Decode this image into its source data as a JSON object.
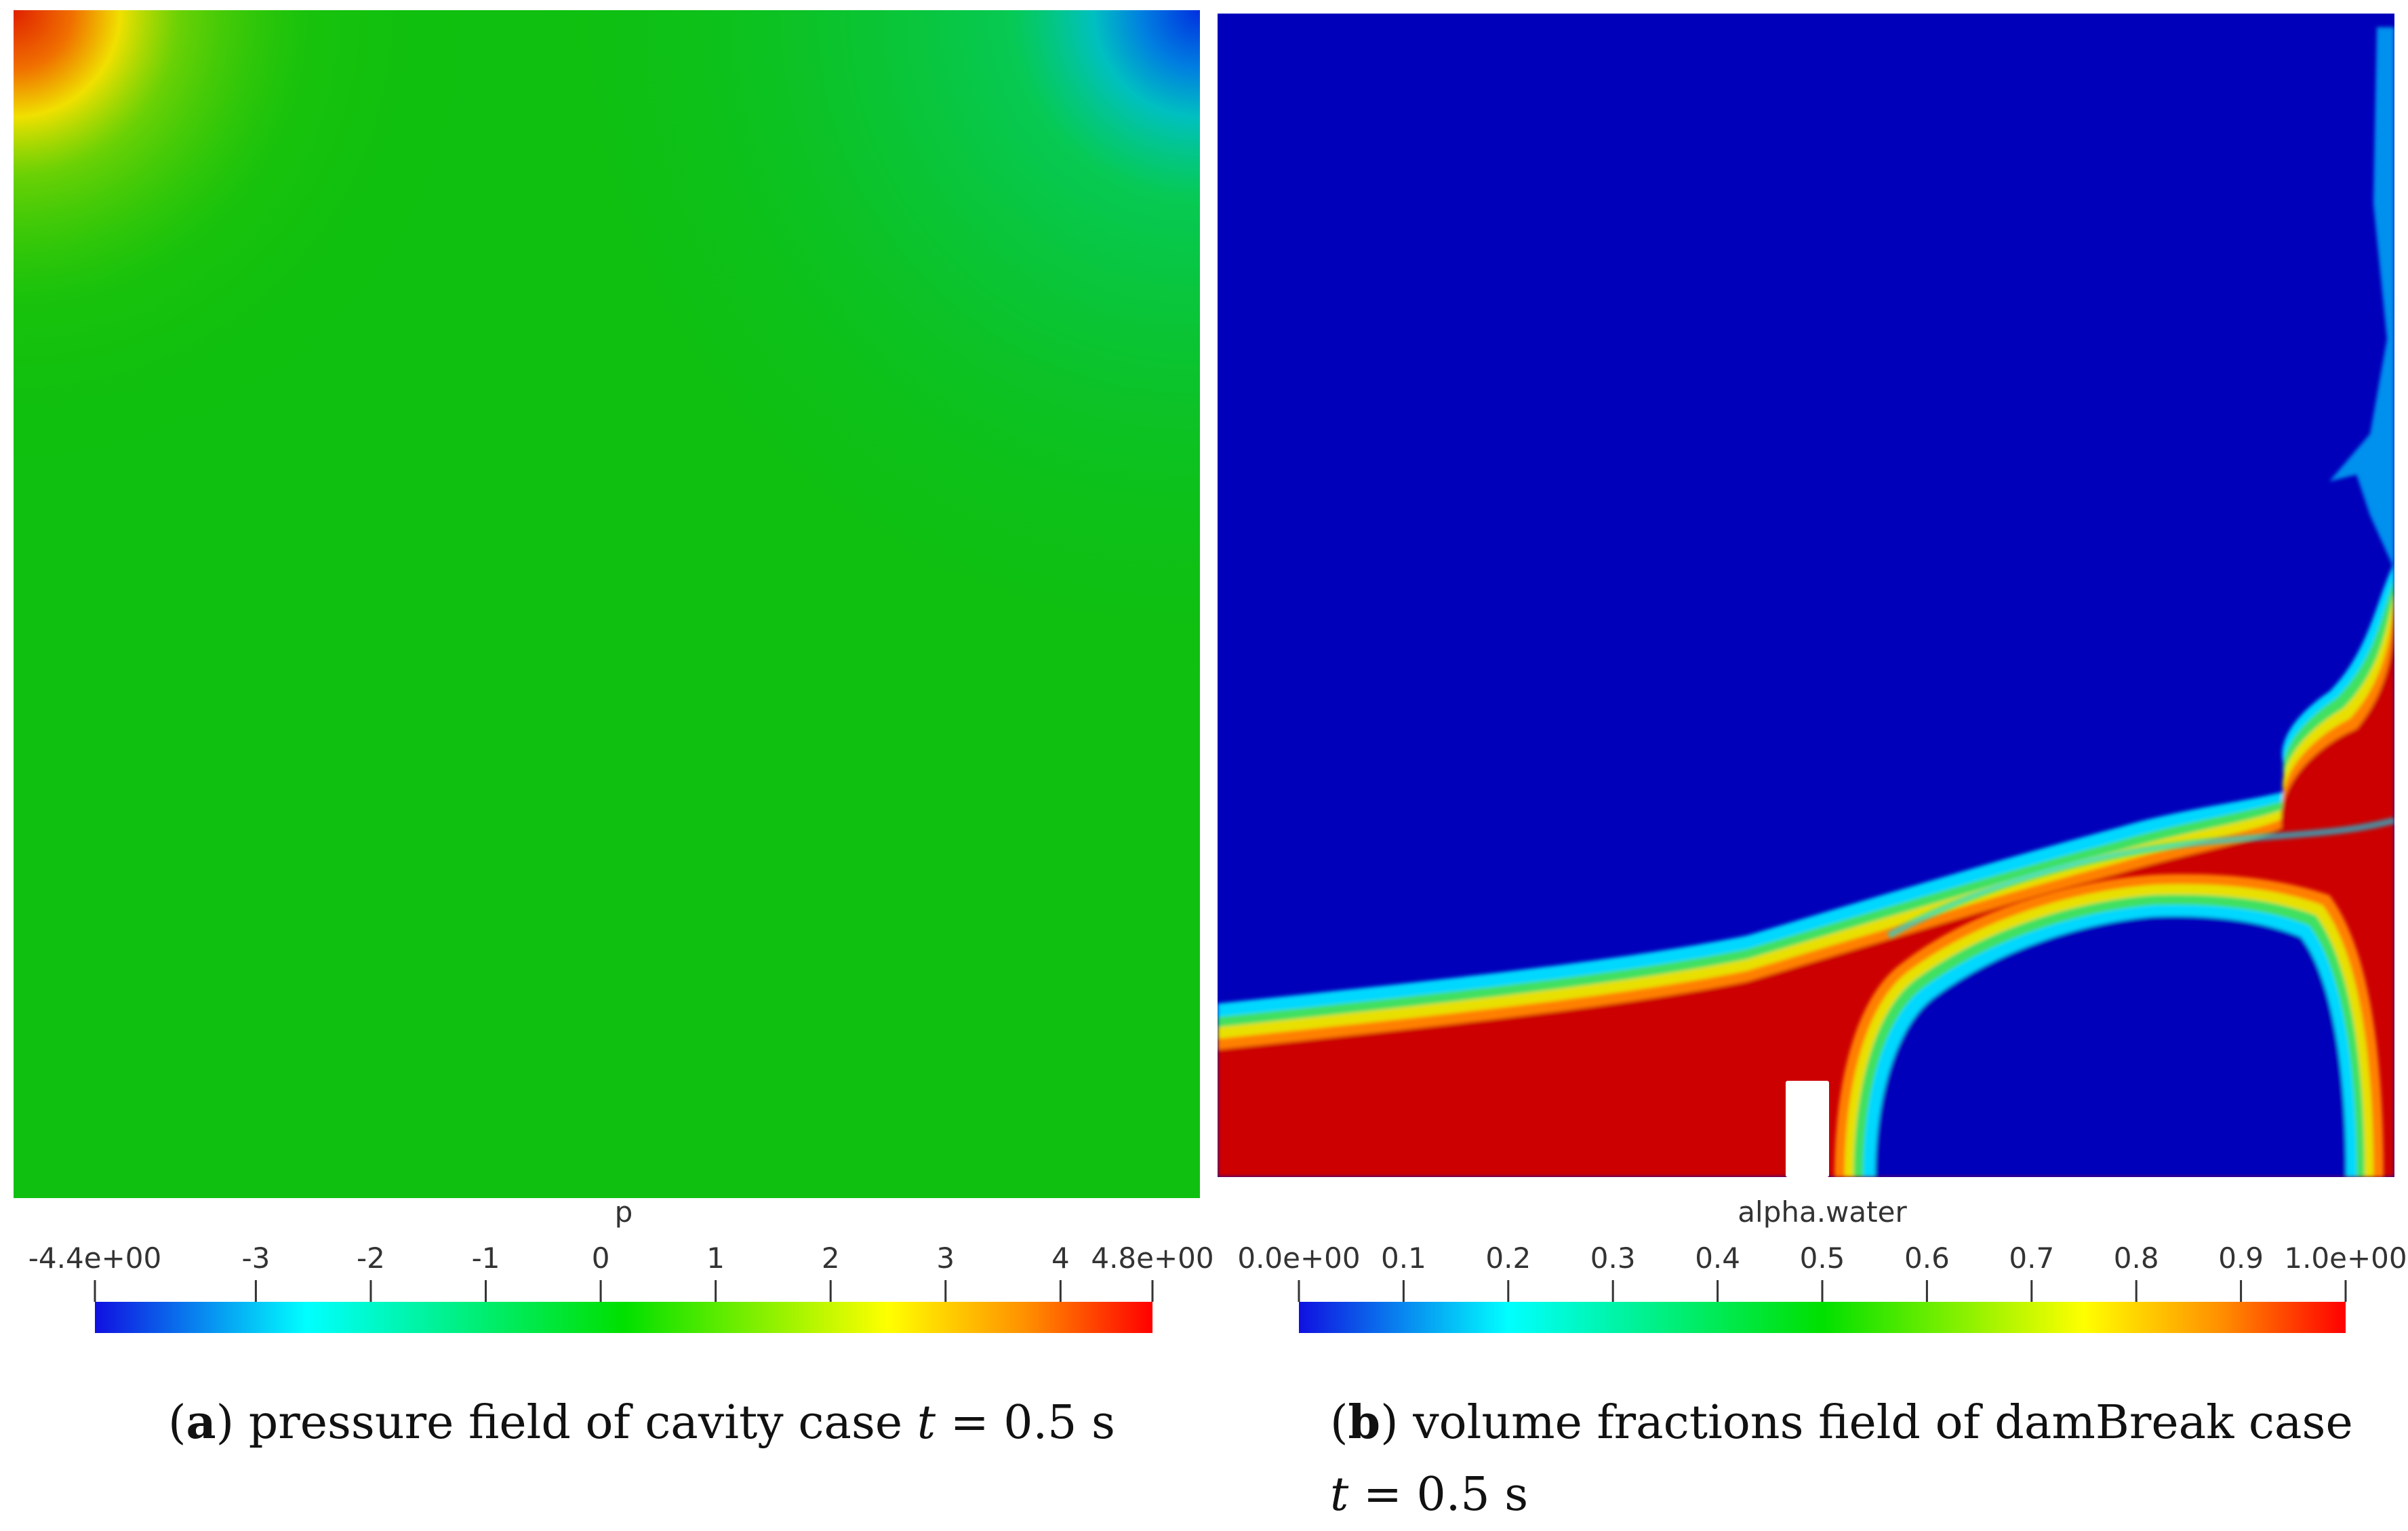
{
  "panel_a": {
    "field_name": "p",
    "colorbar": {
      "min_label": "-4.4e+00",
      "max_label": "4.8e+00",
      "range": [
        -4.4,
        4.8
      ],
      "ticks": [
        {
          "value": -4.4,
          "label": "-4.4e+00"
        },
        {
          "value": -3,
          "label": "-3"
        },
        {
          "value": -2,
          "label": "-2"
        },
        {
          "value": -1,
          "label": "-1"
        },
        {
          "value": 0,
          "label": "0"
        },
        {
          "value": 1,
          "label": "1"
        },
        {
          "value": 2,
          "label": "2"
        },
        {
          "value": 3,
          "label": "3"
        },
        {
          "value": 4,
          "label": "4"
        },
        {
          "value": 4.8,
          "label": "4.8e+00"
        }
      ]
    },
    "caption": {
      "letter": "a",
      "text": "pressure field of cavity case",
      "time_var": "t",
      "time_value": "= 0.5 s"
    }
  },
  "panel_b": {
    "field_name": "alpha.water",
    "colorbar": {
      "range": [
        0,
        1
      ],
      "ticks": [
        {
          "value": 0,
          "label": "0.0e+00"
        },
        {
          "value": 0.1,
          "label": "0.1"
        },
        {
          "value": 0.2,
          "label": "0.2"
        },
        {
          "value": 0.3,
          "label": "0.3"
        },
        {
          "value": 0.4,
          "label": "0.4"
        },
        {
          "value": 0.5,
          "label": "0.5"
        },
        {
          "value": 0.6,
          "label": "0.6"
        },
        {
          "value": 0.7,
          "label": "0.7"
        },
        {
          "value": 0.8,
          "label": "0.8"
        },
        {
          "value": 0.9,
          "label": "0.9"
        },
        {
          "value": 1,
          "label": "1.0e+00"
        }
      ]
    },
    "caption": {
      "letter": "b",
      "text": "volume fractions field of damBreak case",
      "time_var": "t",
      "time_value": "= 0.5 s"
    }
  },
  "colormap": [
    "#0000d8",
    "#00ffff",
    "#00e000",
    "#ffff00",
    "#ff8000",
    "#ee0000"
  ],
  "colors": {
    "water": "#cc0000",
    "air": "#0000bb",
    "pressure_base": "#00c000"
  }
}
